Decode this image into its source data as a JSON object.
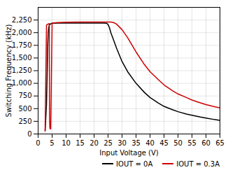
{
  "chart_data": {
    "type": "line",
    "title": "",
    "xlabel": "Input Voltage (V)",
    "ylabel": "Switching Frequency (kHz)",
    "xlim": [
      0,
      65
    ],
    "ylim": [
      0,
      2500
    ],
    "xticks": [
      0,
      5,
      10,
      15,
      20,
      25,
      30,
      35,
      40,
      45,
      50,
      55,
      60,
      65
    ],
    "yticks": [
      0,
      250,
      500,
      750,
      1000,
      1250,
      1500,
      1750,
      2000,
      2250
    ],
    "grid": true,
    "legend": "lower right",
    "series": [
      {
        "name": "IOUT = 0A",
        "color": "#000000",
        "x": [
          2.5,
          3.0,
          3.2,
          3.4,
          3.6,
          3.8,
          4.0,
          4.5,
          5.0,
          7.0,
          10.0,
          15.0,
          20.0,
          23.0,
          24.5,
          25.0,
          25.5,
          26.0,
          27.0,
          28.0,
          30.0,
          32.0,
          35.0,
          38.0,
          40.0,
          43.0,
          45.0,
          48.0,
          50.0,
          53.0,
          55.0,
          58.0,
          60.0,
          63.0,
          65.0
        ],
        "values": [
          60,
          580,
          1100,
          1700,
          2000,
          2100,
          2150,
          2175,
          2185,
          2190,
          2190,
          2190,
          2190,
          2190,
          2185,
          2160,
          2100,
          2000,
          1850,
          1700,
          1430,
          1230,
          1000,
          820,
          720,
          610,
          545,
          480,
          440,
          395,
          370,
          335,
          315,
          285,
          270
        ]
      },
      {
        "name": "IOUT = 0.3A",
        "color": "#cc0000",
        "x": [
          2.5,
          3.0,
          3.5,
          3.8,
          4.0,
          4.05,
          4.1,
          4.2,
          4.3,
          4.5,
          5.0,
          7.0,
          10.0,
          15.0,
          20.0,
          23.0,
          25.0,
          26.0,
          27.0,
          28.0,
          30.0,
          32.0,
          35.0,
          38.0,
          40.0,
          43.0,
          45.0,
          48.0,
          50.0,
          53.0,
          55.0,
          58.0,
          60.0,
          63.0,
          65.0
        ],
        "values": [
          60,
          2150,
          2170,
          2175,
          2180,
          700,
          300,
          130,
          100,
          100,
          2190,
          2200,
          2205,
          2210,
          2210,
          2210,
          2210,
          2210,
          2200,
          2170,
          2060,
          1900,
          1620,
          1370,
          1230,
          1070,
          970,
          855,
          790,
          720,
          670,
          615,
          580,
          540,
          515
        ]
      }
    ]
  }
}
